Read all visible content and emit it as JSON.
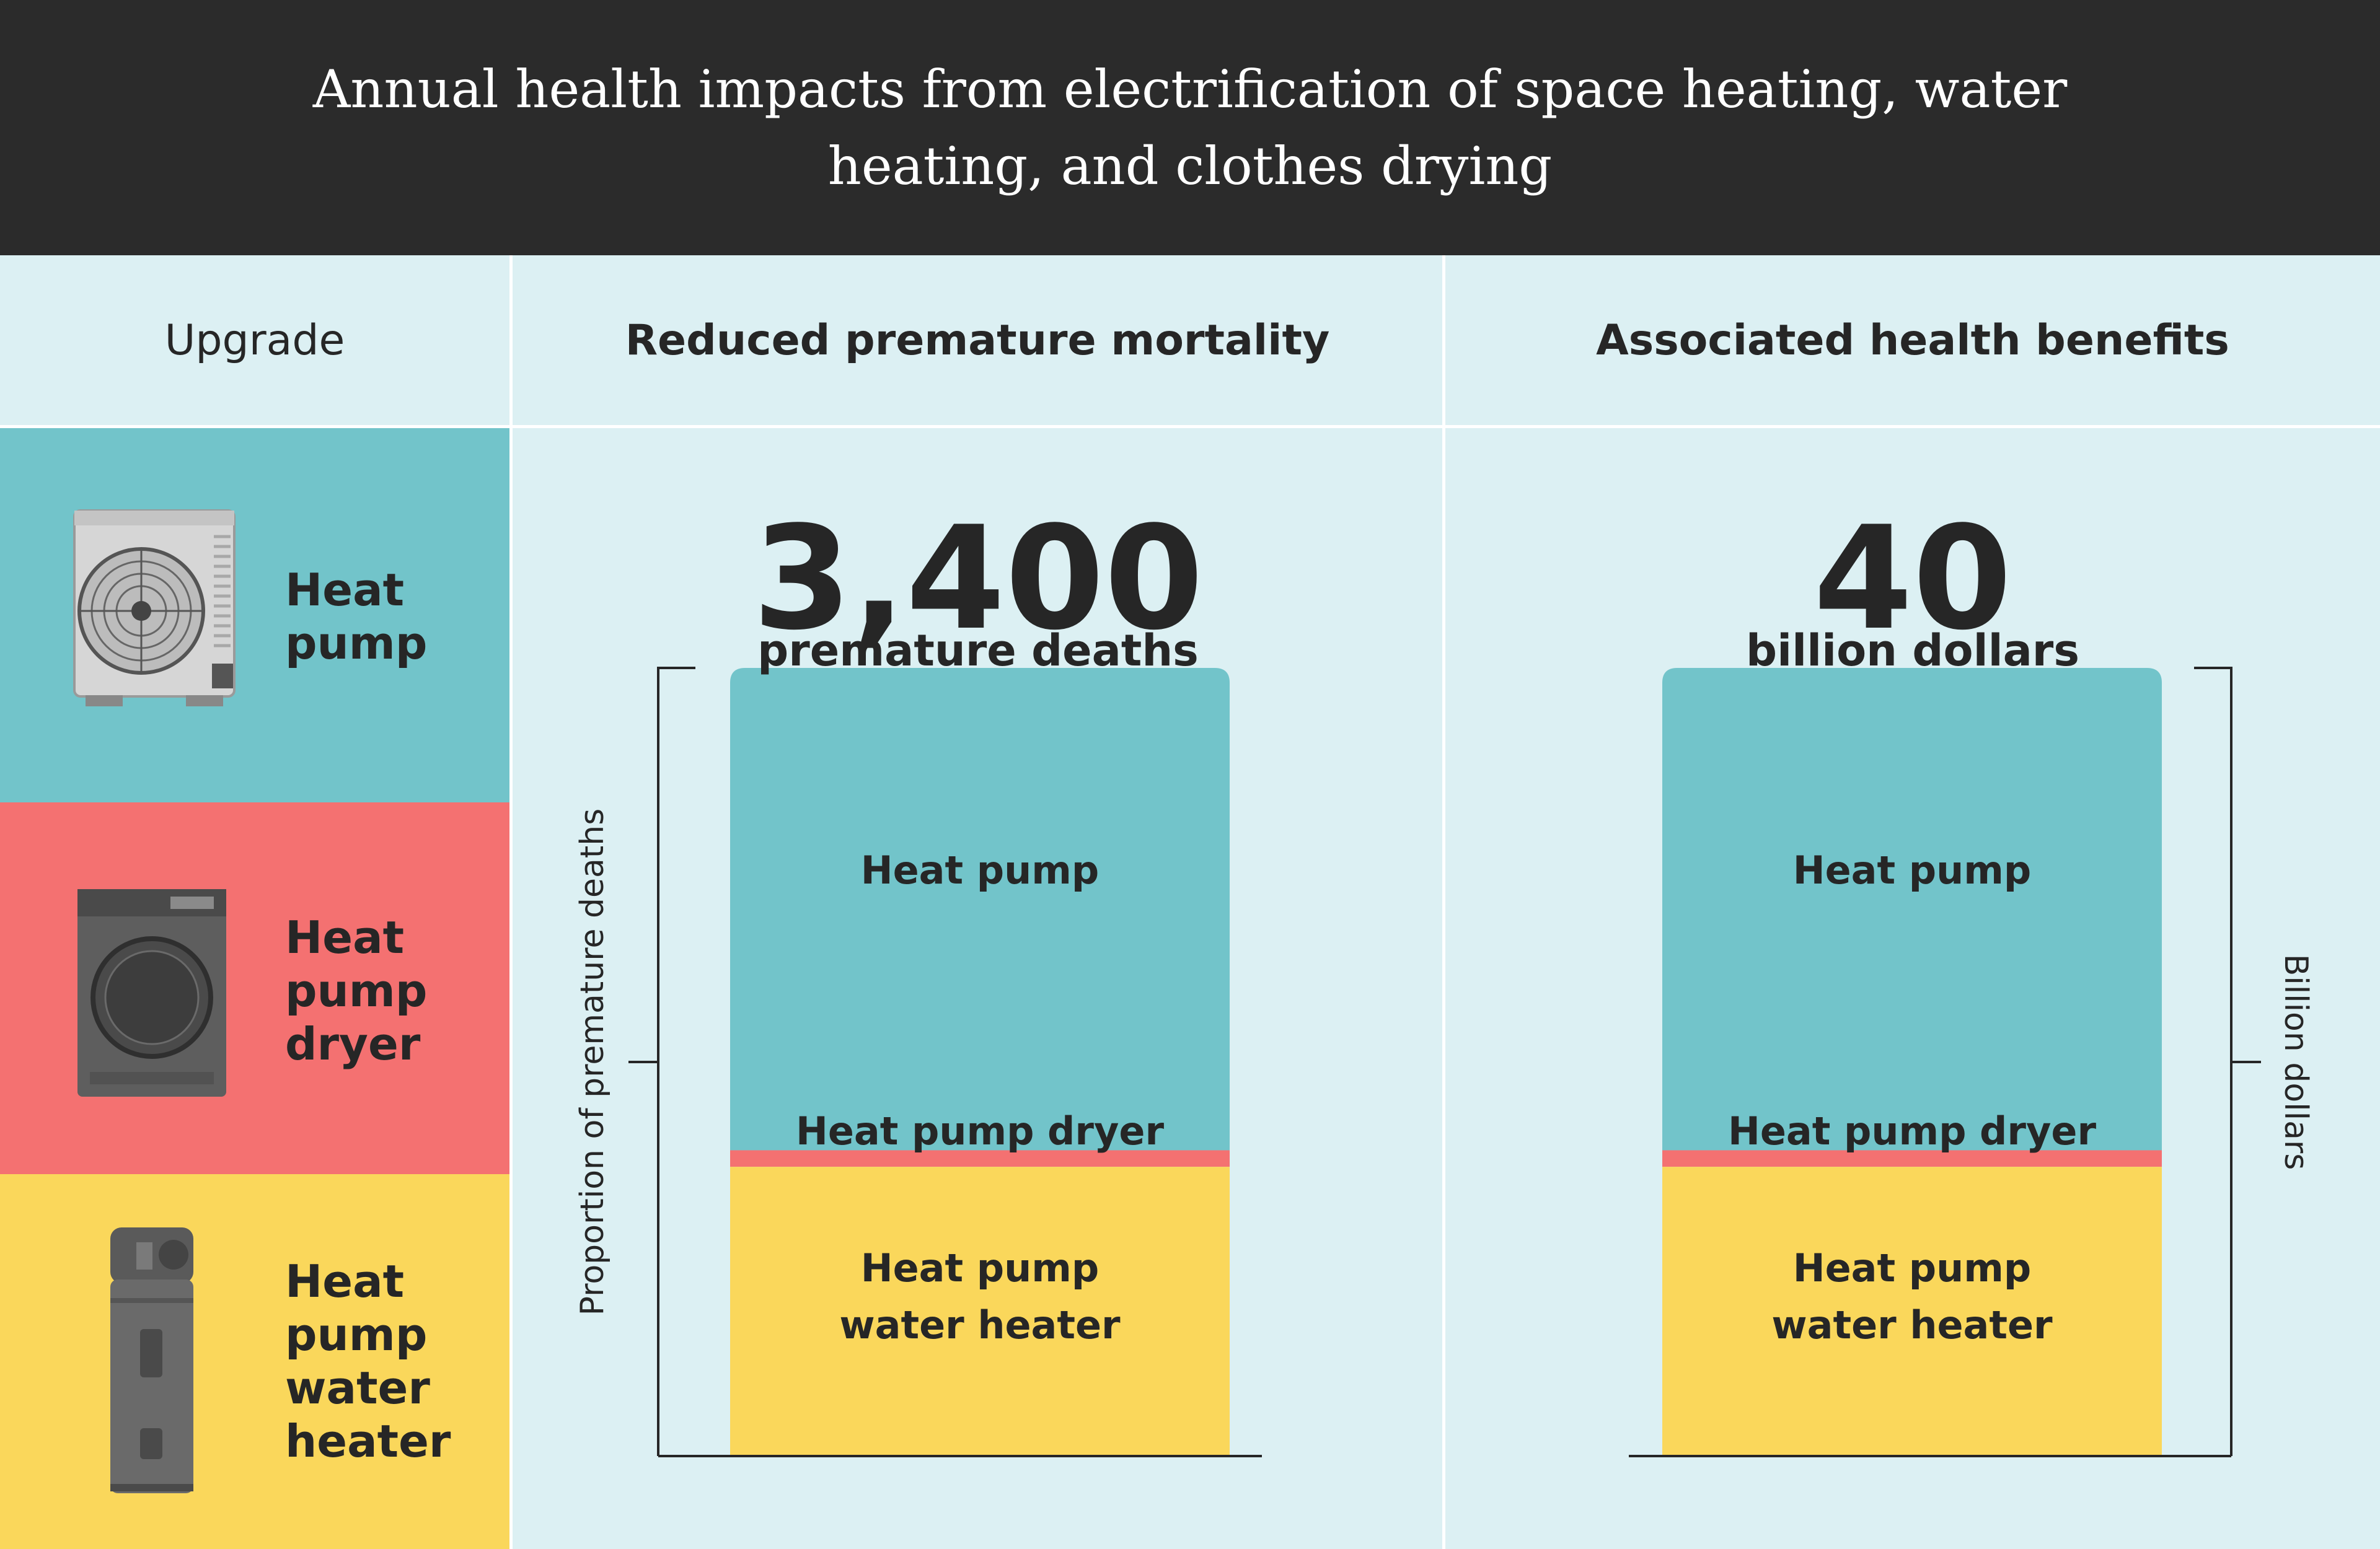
{
  "title": "Annual health impacts from electrification of space heating, water heating, and clothes drying",
  "headers": {
    "upgrade": "Upgrade",
    "mortality": "Reduced premature mortality",
    "benefits": "Associated health benefits"
  },
  "upgrades": [
    {
      "label_lines": [
        "Heat",
        "pump"
      ],
      "icon": "heat-pump-unit-icon",
      "color": "#72c4ca"
    },
    {
      "label_lines": [
        "Heat",
        "pump",
        "dryer"
      ],
      "icon": "heat-pump-dryer-icon",
      "color": "#f47171"
    },
    {
      "label_lines": [
        "Heat",
        "pump",
        "water",
        "heater"
      ],
      "icon": "heat-pump-water-heater-icon",
      "color": "#fad75b"
    }
  ],
  "chart_data": [
    {
      "type": "bar",
      "subtype": "stacked-100",
      "total_value": "3,400",
      "total_unit": "premature deaths",
      "ylabel": "Proportion of premature deaths",
      "segments": [
        {
          "name": "Heat pump",
          "share": 0.612,
          "color": "#72c4ca"
        },
        {
          "name": "Heat pump dryer",
          "share": 0.021,
          "color": "#f47171"
        },
        {
          "name": "Heat pump water heater",
          "label_lines": [
            "Heat pump",
            "water heater"
          ],
          "share": 0.367,
          "color": "#fad75b"
        }
      ]
    },
    {
      "type": "bar",
      "subtype": "stacked-100",
      "total_value": "40",
      "total_unit": "billion dollars",
      "ylabel": "Billion dollars",
      "segments": [
        {
          "name": "Heat pump",
          "share": 0.612,
          "color": "#72c4ca"
        },
        {
          "name": "Heat pump dryer",
          "share": 0.021,
          "color": "#f47171"
        },
        {
          "name": "Heat pump water heater",
          "label_lines": [
            "Heat pump",
            "water heater"
          ],
          "share": 0.367,
          "color": "#fad75b"
        }
      ]
    }
  ]
}
